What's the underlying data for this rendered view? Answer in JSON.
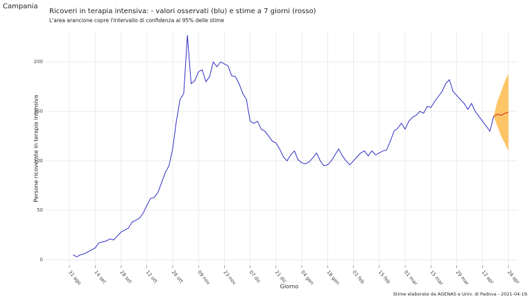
{
  "page_title": "Campania",
  "chart_data": {
    "type": "line",
    "title": "Ricoveri in terapia intensiva: - valori osservati (blu) e stime a 7 giorni (rosso)",
    "subtitle": "L'area arancione copre l'intervallo di confidenza al 95% delle stime",
    "x_label": "Giorno",
    "y_label": "Persone ricoverate in terapia intensiva",
    "caption": "Stime elaborate da AGENAS e Univ. di Padova - 2021-04-19.",
    "categories": [
      "31 ago",
      null,
      null,
      null,
      null,
      null,
      null,
      "14 set",
      null,
      null,
      null,
      null,
      null,
      null,
      "28 set",
      null,
      null,
      null,
      null,
      null,
      null,
      "12 ott",
      null,
      null,
      null,
      null,
      null,
      null,
      "26 ott",
      null,
      null,
      null,
      null,
      null,
      null,
      "09 nov",
      null,
      null,
      null,
      null,
      null,
      null,
      "23 nov",
      null,
      null,
      null,
      null,
      null,
      null,
      "07 dic",
      null,
      null,
      null,
      null,
      null,
      null,
      "21 dic",
      null,
      null,
      null,
      null,
      null,
      null,
      "04 gen",
      null,
      null,
      null,
      null,
      null,
      null,
      "18 gen",
      null,
      null,
      null,
      null,
      null,
      null,
      "01 feb",
      null,
      null,
      null,
      null,
      null,
      null,
      "15 feb",
      null,
      null,
      null,
      null,
      null,
      null,
      "01 mar",
      null,
      null,
      null,
      null,
      null,
      null,
      "15 mar",
      null,
      null,
      null,
      null,
      null,
      null,
      "29 mar",
      null,
      null,
      null,
      null,
      null,
      null,
      "12 apr",
      null,
      null,
      null,
      null,
      null,
      null,
      "26 apr"
    ],
    "series": [
      {
        "name": "osservati",
        "color": "#2b2bc4",
        "values": [
          null,
          5,
          3,
          5,
          6,
          8,
          10,
          12,
          17,
          18,
          19,
          21,
          20,
          24,
          28,
          30,
          32,
          38,
          40,
          42,
          47,
          55,
          62,
          63,
          68,
          78,
          88,
          95,
          112,
          140,
          162,
          168,
          227,
          178,
          181,
          190,
          192,
          180,
          185,
          200,
          195,
          200,
          198,
          196,
          186,
          185,
          178,
          168,
          162,
          140,
          138,
          140,
          132,
          130,
          125,
          120,
          118,
          112,
          104,
          100,
          106,
          110,
          101,
          98,
          97,
          99,
          103,
          108,
          100,
          95,
          96,
          100,
          106,
          112,
          105,
          100,
          96,
          100,
          104,
          108,
          110,
          105,
          110,
          106,
          108,
          110,
          111,
          120,
          130,
          133,
          138,
          132,
          140,
          144,
          146,
          150,
          148,
          155,
          154,
          160,
          165,
          170,
          178,
          182,
          170,
          166,
          162,
          158,
          152,
          158,
          150,
          145,
          140,
          135,
          130,
          145,
          null,
          null,
          null,
          null
        ]
      },
      {
        "name": "stime",
        "color": "#cc2a1a",
        "values": [
          null,
          null,
          null,
          null,
          null,
          null,
          null,
          null,
          null,
          null,
          null,
          null,
          null,
          null,
          null,
          null,
          null,
          null,
          null,
          null,
          null,
          null,
          null,
          null,
          null,
          null,
          null,
          null,
          null,
          null,
          null,
          null,
          null,
          null,
          null,
          null,
          null,
          null,
          null,
          null,
          null,
          null,
          null,
          null,
          null,
          null,
          null,
          null,
          null,
          null,
          null,
          null,
          null,
          null,
          null,
          null,
          null,
          null,
          null,
          null,
          null,
          null,
          null,
          null,
          null,
          null,
          null,
          null,
          null,
          null,
          null,
          null,
          null,
          null,
          null,
          null,
          null,
          null,
          null,
          null,
          null,
          null,
          null,
          null,
          null,
          null,
          null,
          null,
          null,
          null,
          null,
          null,
          null,
          null,
          null,
          null,
          null,
          null,
          null,
          null,
          null,
          null,
          null,
          null,
          null,
          null,
          null,
          null,
          null,
          null,
          null,
          null,
          null,
          null,
          null,
          145,
          147,
          146,
          148,
          149
        ]
      }
    ],
    "interval": {
      "color": "#fdbf55",
      "lower": [
        null,
        null,
        null,
        null,
        null,
        null,
        null,
        null,
        null,
        null,
        null,
        null,
        null,
        null,
        null,
        null,
        null,
        null,
        null,
        null,
        null,
        null,
        null,
        null,
        null,
        null,
        null,
        null,
        null,
        null,
        null,
        null,
        null,
        null,
        null,
        null,
        null,
        null,
        null,
        null,
        null,
        null,
        null,
        null,
        null,
        null,
        null,
        null,
        null,
        null,
        null,
        null,
        null,
        null,
        null,
        null,
        null,
        null,
        null,
        null,
        null,
        null,
        null,
        null,
        null,
        null,
        null,
        null,
        null,
        null,
        null,
        null,
        null,
        null,
        null,
        null,
        null,
        null,
        null,
        null,
        null,
        null,
        null,
        null,
        null,
        null,
        null,
        null,
        null,
        null,
        null,
        null,
        null,
        null,
        null,
        null,
        null,
        null,
        null,
        null,
        null,
        null,
        null,
        null,
        null,
        null,
        null,
        null,
        null,
        null,
        null,
        null,
        null,
        null,
        null,
        145,
        135,
        125,
        118,
        110
      ],
      "upper": [
        null,
        null,
        null,
        null,
        null,
        null,
        null,
        null,
        null,
        null,
        null,
        null,
        null,
        null,
        null,
        null,
        null,
        null,
        null,
        null,
        null,
        null,
        null,
        null,
        null,
        null,
        null,
        null,
        null,
        null,
        null,
        null,
        null,
        null,
        null,
        null,
        null,
        null,
        null,
        null,
        null,
        null,
        null,
        null,
        null,
        null,
        null,
        null,
        null,
        null,
        null,
        null,
        null,
        null,
        null,
        null,
        null,
        null,
        null,
        null,
        null,
        null,
        null,
        null,
        null,
        null,
        null,
        null,
        null,
        null,
        null,
        null,
        null,
        null,
        null,
        null,
        null,
        null,
        null,
        null,
        null,
        null,
        null,
        null,
        null,
        null,
        null,
        null,
        null,
        null,
        null,
        null,
        null,
        null,
        null,
        null,
        null,
        null,
        null,
        null,
        null,
        null,
        null,
        null,
        null,
        null,
        null,
        null,
        null,
        null,
        null,
        null,
        null,
        null,
        null,
        145,
        160,
        170,
        180,
        188
      ]
    },
    "ylim": [
      -6,
      231
    ],
    "yticks": [
      0,
      50,
      100,
      150,
      200
    ],
    "grid": true
  }
}
